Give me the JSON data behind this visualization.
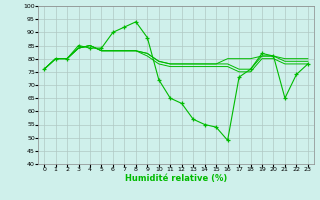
{
  "title": "",
  "xlabel": "Humidité relative (%)",
  "ylabel": "",
  "bg_color": "#cff0eb",
  "grid_color": "#b0c8c4",
  "line_color": "#00bb00",
  "marker": "+",
  "ylim": [
    40,
    100
  ],
  "xlim": [
    -0.5,
    23.5
  ],
  "yticks": [
    40,
    45,
    50,
    55,
    60,
    65,
    70,
    75,
    80,
    85,
    90,
    95,
    100
  ],
  "xticks": [
    0,
    1,
    2,
    3,
    4,
    5,
    6,
    7,
    8,
    9,
    10,
    11,
    12,
    13,
    14,
    15,
    16,
    17,
    18,
    19,
    20,
    21,
    22,
    23
  ],
  "series": [
    [
      76,
      80,
      80,
      85,
      84,
      84,
      90,
      92,
      94,
      88,
      72,
      65,
      63,
      57,
      55,
      54,
      49,
      73,
      76,
      82,
      81,
      65,
      74,
      78
    ],
    [
      76,
      80,
      80,
      84,
      85,
      83,
      83,
      83,
      83,
      82,
      79,
      78,
      78,
      78,
      78,
      78,
      78,
      76,
      76,
      81,
      81,
      79,
      79,
      79
    ],
    [
      76,
      80,
      80,
      84,
      85,
      83,
      83,
      83,
      83,
      82,
      79,
      78,
      78,
      78,
      78,
      78,
      80,
      80,
      80,
      81,
      81,
      80,
      80,
      80
    ],
    [
      76,
      80,
      80,
      84,
      85,
      83,
      83,
      83,
      83,
      81,
      78,
      77,
      77,
      77,
      77,
      77,
      77,
      75,
      75,
      80,
      80,
      78,
      78,
      78
    ]
  ]
}
